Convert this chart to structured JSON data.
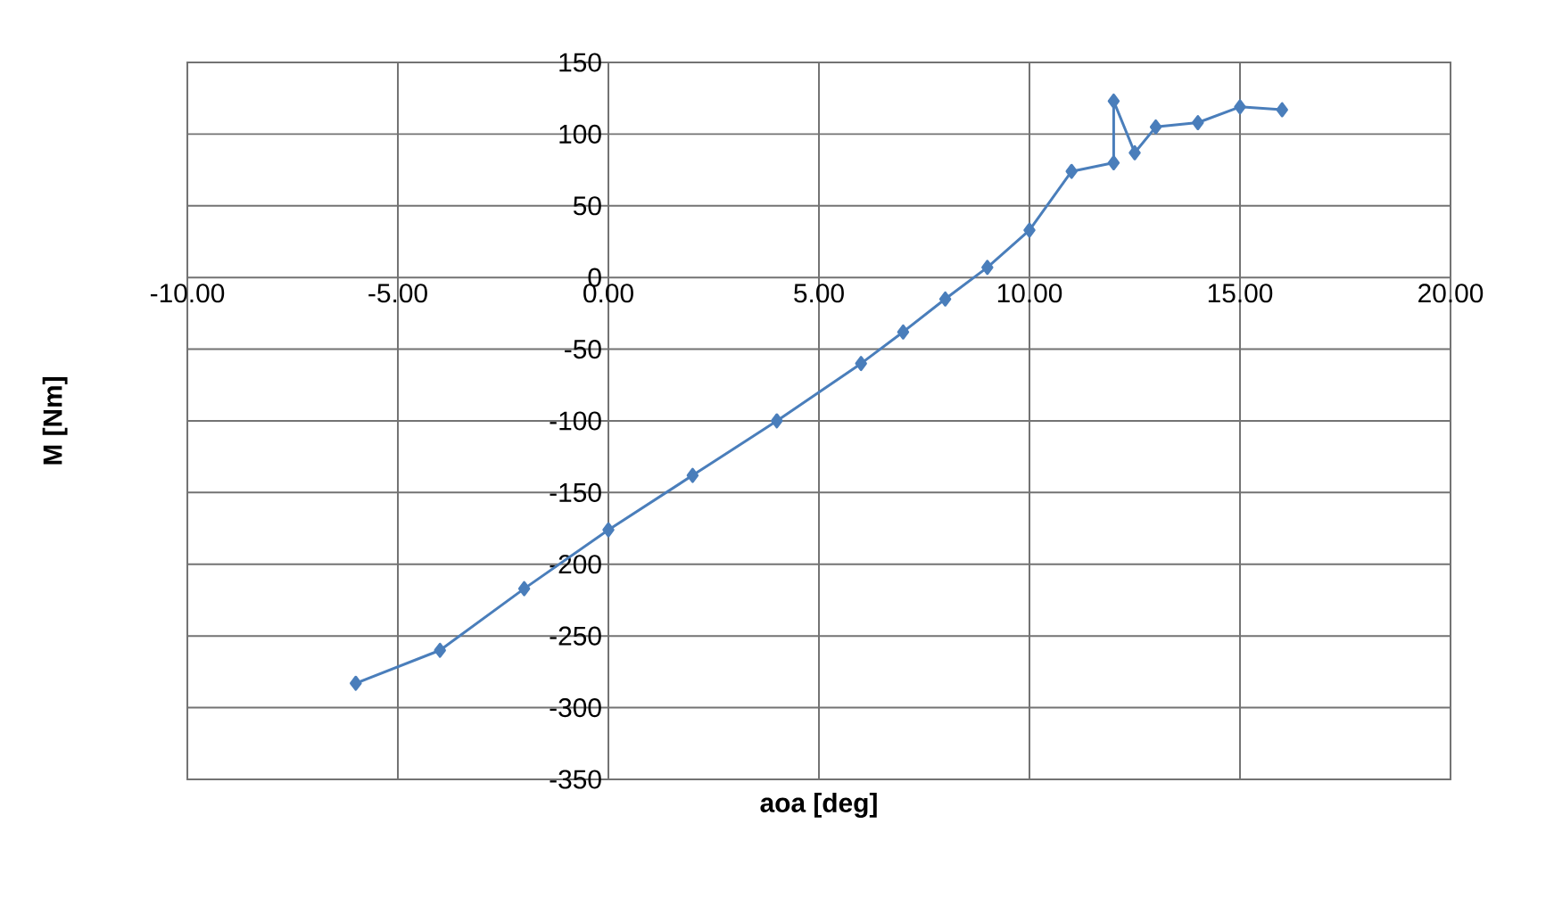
{
  "chart_data": {
    "type": "line",
    "xlabel": "aoa [deg]",
    "ylabel": "M [Nm]",
    "series": [
      {
        "color": "#4a7ebb",
        "x": [
          -6,
          -4,
          -2,
          0,
          2,
          4,
          6,
          7,
          8,
          9,
          10,
          11,
          12,
          12,
          12.5,
          13,
          14,
          15,
          16
        ],
        "values": [
          -283,
          -260,
          -217,
          -176,
          -138,
          -100,
          -60,
          -38,
          -15,
          7,
          33,
          74,
          80,
          123,
          87,
          105,
          108,
          119,
          117
        ]
      }
    ],
    "xlim": [
      -10,
      20
    ],
    "ylim": [
      -350,
      150
    ],
    "xticks": [
      {
        "value": -10,
        "label": "-10.00"
      },
      {
        "value": -5,
        "label": "-5.00"
      },
      {
        "value": 0,
        "label": "0.00"
      },
      {
        "value": 5,
        "label": "5.00"
      },
      {
        "value": 10,
        "label": "10.00"
      },
      {
        "value": 15,
        "label": "15.00"
      },
      {
        "value": 20,
        "label": "20.00"
      }
    ],
    "yticks": [
      -350,
      -300,
      -250,
      -200,
      -150,
      -100,
      -50,
      0,
      50,
      100,
      150
    ],
    "grid": true,
    "marker": "diamond",
    "line_style": "solid"
  }
}
